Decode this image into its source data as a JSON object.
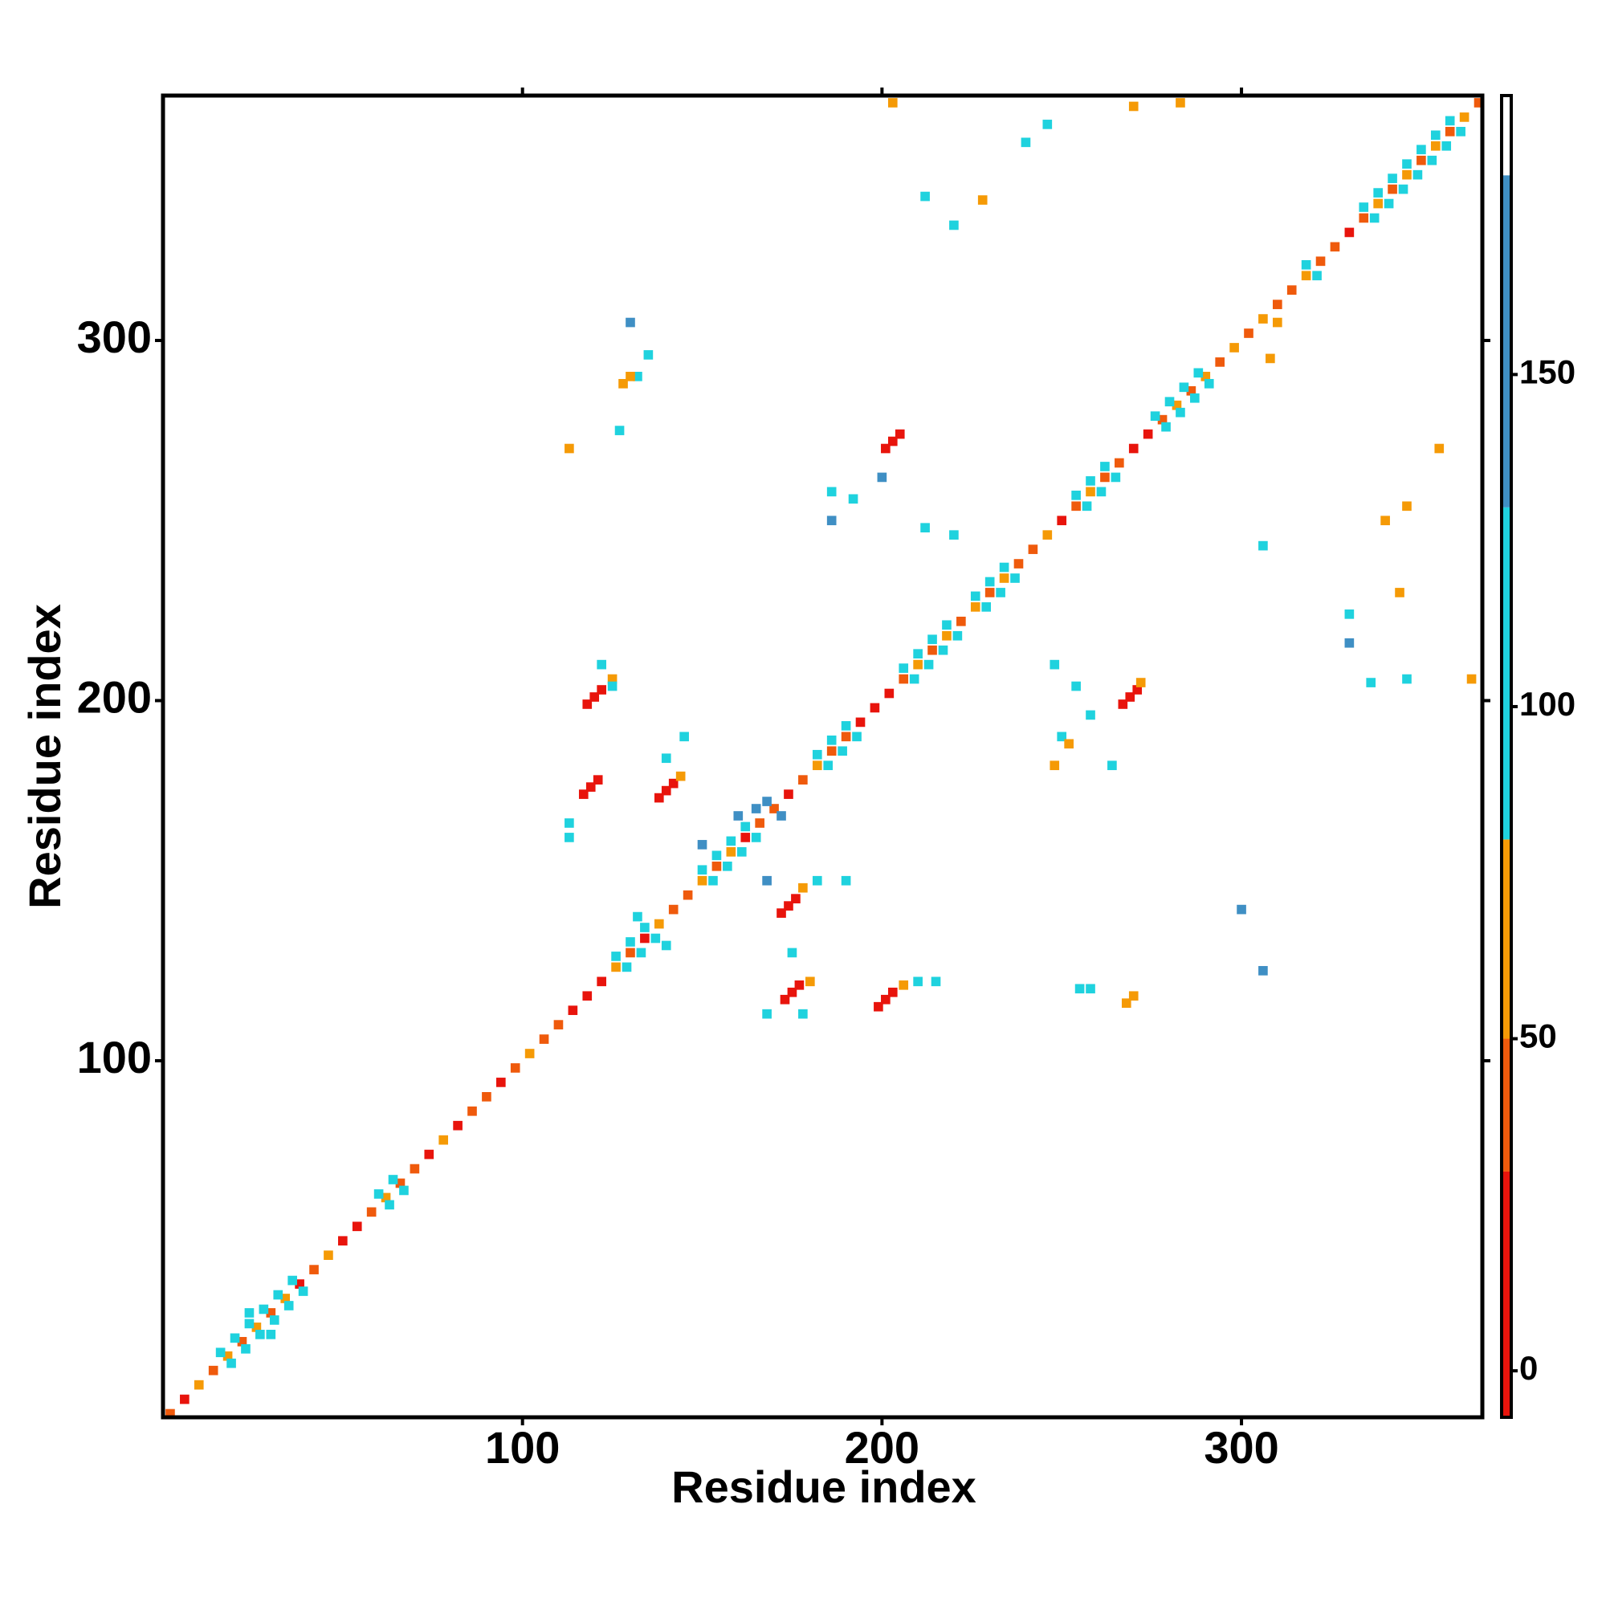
{
  "chart_data": {
    "type": "heatmap",
    "xlabel": "Residue index",
    "ylabel": "Residue index",
    "xlim": [
      0,
      367
    ],
    "ylim": [
      1,
      368
    ],
    "xticks": [
      100,
      200,
      300
    ],
    "yticks": [
      100,
      200,
      300
    ],
    "colorbar": {
      "lim": [
        -7,
        192
      ],
      "ticks": [
        0,
        50,
        100,
        150
      ],
      "bins": [
        -7,
        30,
        50,
        80,
        130,
        180,
        192
      ],
      "colors": [
        "#e8140c",
        "#ef5a0c",
        "#f59a06",
        "#1fd2de",
        "#3f8fc4",
        "#ffffff"
      ]
    },
    "cells": [
      [
        2,
        2,
        40
      ],
      [
        6,
        6,
        20
      ],
      [
        10,
        10,
        60
      ],
      [
        14,
        14,
        45
      ],
      [
        18,
        18,
        60
      ],
      [
        22,
        22,
        30
      ],
      [
        26,
        26,
        60
      ],
      [
        30,
        30,
        45
      ],
      [
        34,
        34,
        60
      ],
      [
        38,
        38,
        20
      ],
      [
        42,
        42,
        45
      ],
      [
        46,
        46,
        60
      ],
      [
        50,
        50,
        20
      ],
      [
        54,
        54,
        10
      ],
      [
        58,
        58,
        45
      ],
      [
        62,
        62,
        60
      ],
      [
        66,
        66,
        30
      ],
      [
        70,
        70,
        45
      ],
      [
        74,
        74,
        20
      ],
      [
        78,
        78,
        60
      ],
      [
        82,
        82,
        20
      ],
      [
        86,
        86,
        45
      ],
      [
        90,
        90,
        30
      ],
      [
        94,
        94,
        20
      ],
      [
        98,
        98,
        45
      ],
      [
        102,
        102,
        60
      ],
      [
        106,
        106,
        45
      ],
      [
        110,
        110,
        30
      ],
      [
        114,
        114,
        20
      ],
      [
        118,
        118,
        10
      ],
      [
        122,
        122,
        20
      ],
      [
        126,
        126,
        60
      ],
      [
        130,
        130,
        45
      ],
      [
        134,
        134,
        20
      ],
      [
        138,
        138,
        60
      ],
      [
        142,
        142,
        45
      ],
      [
        146,
        146,
        30
      ],
      [
        150,
        150,
        60
      ],
      [
        154,
        154,
        45
      ],
      [
        158,
        158,
        60
      ],
      [
        162,
        162,
        20
      ],
      [
        166,
        166,
        45
      ],
      [
        170,
        170,
        30
      ],
      [
        174,
        174,
        20
      ],
      [
        178,
        178,
        45
      ],
      [
        182,
        182,
        60
      ],
      [
        186,
        186,
        45
      ],
      [
        190,
        190,
        30
      ],
      [
        194,
        194,
        20
      ],
      [
        198,
        198,
        10
      ],
      [
        202,
        202,
        20
      ],
      [
        206,
        206,
        45
      ],
      [
        210,
        210,
        60
      ],
      [
        214,
        214,
        45
      ],
      [
        218,
        218,
        60
      ],
      [
        222,
        222,
        45
      ],
      [
        226,
        226,
        60
      ],
      [
        230,
        230,
        45
      ],
      [
        234,
        234,
        60
      ],
      [
        238,
        238,
        30
      ],
      [
        242,
        242,
        45
      ],
      [
        246,
        246,
        60
      ],
      [
        250,
        250,
        20
      ],
      [
        254,
        254,
        45
      ],
      [
        258,
        258,
        60
      ],
      [
        262,
        262,
        45
      ],
      [
        266,
        266,
        30
      ],
      [
        270,
        270,
        20
      ],
      [
        274,
        274,
        10
      ],
      [
        278,
        278,
        45
      ],
      [
        282,
        282,
        60
      ],
      [
        286,
        286,
        45
      ],
      [
        290,
        290,
        60
      ],
      [
        294,
        294,
        45
      ],
      [
        298,
        298,
        60
      ],
      [
        302,
        302,
        45
      ],
      [
        306,
        306,
        60
      ],
      [
        310,
        310,
        30
      ],
      [
        314,
        314,
        45
      ],
      [
        318,
        318,
        60
      ],
      [
        322,
        322,
        45
      ],
      [
        326,
        326,
        30
      ],
      [
        330,
        330,
        20
      ],
      [
        334,
        334,
        45
      ],
      [
        338,
        338,
        60
      ],
      [
        342,
        342,
        30
      ],
      [
        346,
        346,
        60
      ],
      [
        350,
        350,
        45
      ],
      [
        354,
        354,
        60
      ],
      [
        358,
        358,
        45
      ],
      [
        362,
        362,
        60
      ],
      [
        366,
        366,
        30
      ],
      [
        16,
        19,
        100
      ],
      [
        19,
        16,
        110
      ],
      [
        20,
        23,
        100
      ],
      [
        23,
        20,
        110
      ],
      [
        24,
        27,
        100
      ],
      [
        27,
        24,
        110
      ],
      [
        28,
        31,
        100
      ],
      [
        31,
        28,
        110
      ],
      [
        32,
        35,
        100
      ],
      [
        35,
        32,
        110
      ],
      [
        36,
        39,
        100
      ],
      [
        39,
        36,
        110
      ],
      [
        60,
        63,
        100
      ],
      [
        63,
        60,
        110
      ],
      [
        64,
        67,
        100
      ],
      [
        67,
        64,
        110
      ],
      [
        126,
        129,
        100
      ],
      [
        129,
        126,
        110
      ],
      [
        130,
        133,
        100
      ],
      [
        133,
        130,
        110
      ],
      [
        134,
        137,
        100
      ],
      [
        137,
        134,
        110
      ],
      [
        150,
        153,
        100
      ],
      [
        153,
        150,
        110
      ],
      [
        154,
        157,
        100
      ],
      [
        157,
        154,
        110
      ],
      [
        158,
        161,
        100
      ],
      [
        161,
        158,
        110
      ],
      [
        162,
        165,
        100
      ],
      [
        165,
        162,
        110
      ],
      [
        182,
        185,
        100
      ],
      [
        185,
        182,
        110
      ],
      [
        186,
        189,
        100
      ],
      [
        189,
        186,
        110
      ],
      [
        190,
        193,
        100
      ],
      [
        193,
        190,
        110
      ],
      [
        206,
        209,
        100
      ],
      [
        209,
        206,
        110
      ],
      [
        210,
        213,
        100
      ],
      [
        213,
        210,
        110
      ],
      [
        214,
        217,
        100
      ],
      [
        217,
        214,
        110
      ],
      [
        218,
        221,
        100
      ],
      [
        221,
        218,
        110
      ],
      [
        226,
        229,
        100
      ],
      [
        229,
        226,
        110
      ],
      [
        230,
        233,
        100
      ],
      [
        233,
        230,
        110
      ],
      [
        234,
        237,
        100
      ],
      [
        237,
        234,
        110
      ],
      [
        254,
        257,
        100
      ],
      [
        257,
        254,
        110
      ],
      [
        258,
        261,
        100
      ],
      [
        261,
        258,
        110
      ],
      [
        262,
        265,
        100
      ],
      [
        265,
        262,
        110
      ],
      [
        276,
        279,
        100
      ],
      [
        279,
        276,
        110
      ],
      [
        280,
        283,
        100
      ],
      [
        283,
        280,
        110
      ],
      [
        284,
        287,
        100
      ],
      [
        287,
        284,
        110
      ],
      [
        288,
        291,
        100
      ],
      [
        291,
        288,
        110
      ],
      [
        318,
        321,
        100
      ],
      [
        321,
        318,
        110
      ],
      [
        334,
        337,
        100
      ],
      [
        337,
        334,
        110
      ],
      [
        338,
        341,
        100
      ],
      [
        341,
        338,
        110
      ],
      [
        342,
        345,
        100
      ],
      [
        345,
        342,
        110
      ],
      [
        346,
        349,
        100
      ],
      [
        349,
        346,
        110
      ],
      [
        350,
        353,
        100
      ],
      [
        353,
        350,
        110
      ],
      [
        354,
        357,
        100
      ],
      [
        357,
        354,
        110
      ],
      [
        358,
        361,
        100
      ],
      [
        361,
        358,
        110
      ],
      [
        24,
        30,
        100
      ],
      [
        30,
        24,
        100
      ],
      [
        132,
        140,
        100
      ],
      [
        140,
        132,
        100
      ],
      [
        168,
        172,
        150
      ],
      [
        172,
        168,
        150
      ],
      [
        118,
        199,
        5
      ],
      [
        120,
        201,
        5
      ],
      [
        122,
        203,
        5
      ],
      [
        117,
        174,
        5
      ],
      [
        119,
        176,
        5
      ],
      [
        121,
        178,
        5
      ],
      [
        138,
        173,
        5
      ],
      [
        140,
        175,
        5
      ],
      [
        142,
        177,
        5
      ],
      [
        172,
        141,
        5
      ],
      [
        174,
        143,
        5
      ],
      [
        176,
        145,
        5
      ],
      [
        173,
        117,
        5
      ],
      [
        175,
        119,
        5
      ],
      [
        177,
        121,
        5
      ],
      [
        199,
        115,
        5
      ],
      [
        201,
        117,
        5
      ],
      [
        203,
        119,
        5
      ],
      [
        201,
        270,
        5
      ],
      [
        203,
        272,
        5
      ],
      [
        205,
        274,
        5
      ],
      [
        267,
        199,
        5
      ],
      [
        269,
        201,
        5
      ],
      [
        271,
        203,
        5
      ],
      [
        144,
        179,
        60
      ],
      [
        178,
        148,
        60
      ],
      [
        206,
        121,
        60
      ],
      [
        125,
        206,
        60
      ],
      [
        272,
        205,
        60
      ],
      [
        180,
        122,
        60
      ],
      [
        122,
        210,
        100
      ],
      [
        125,
        204,
        100
      ],
      [
        113,
        166,
        100
      ],
      [
        113,
        162,
        100
      ],
      [
        182,
        150,
        100
      ],
      [
        190,
        150,
        100
      ],
      [
        210,
        122,
        100
      ],
      [
        215,
        122,
        100
      ],
      [
        175,
        130,
        100
      ],
      [
        178,
        113,
        100
      ],
      [
        168,
        113,
        100
      ],
      [
        140,
        184,
        100
      ],
      [
        145,
        190,
        100
      ],
      [
        250,
        190,
        100
      ],
      [
        258,
        196,
        100
      ],
      [
        248,
        210,
        100
      ],
      [
        254,
        204,
        100
      ],
      [
        264,
        182,
        100
      ],
      [
        186,
        258,
        100
      ],
      [
        192,
        256,
        100
      ],
      [
        212,
        248,
        100
      ],
      [
        220,
        246,
        100
      ],
      [
        240,
        355,
        100
      ],
      [
        246,
        360,
        100
      ],
      [
        212,
        340,
        100
      ],
      [
        220,
        332,
        100
      ],
      [
        127,
        275,
        100
      ],
      [
        132,
        290,
        100
      ],
      [
        135,
        296,
        100
      ],
      [
        330,
        224,
        100
      ],
      [
        336,
        205,
        100
      ],
      [
        346,
        206,
        100
      ],
      [
        306,
        243,
        100
      ],
      [
        255,
        120,
        100
      ],
      [
        258,
        120,
        100
      ],
      [
        160,
        168,
        160
      ],
      [
        165,
        170,
        160
      ],
      [
        150,
        160,
        160
      ],
      [
        168,
        150,
        160
      ],
      [
        330,
        216,
        160
      ],
      [
        200,
        262,
        160
      ],
      [
        186,
        250,
        160
      ],
      [
        300,
        142,
        160
      ],
      [
        306,
        125,
        160
      ],
      [
        130,
        305,
        160
      ],
      [
        270,
        118,
        60
      ],
      [
        268,
        116,
        60
      ],
      [
        128,
        288,
        60
      ],
      [
        130,
        290,
        60
      ],
      [
        340,
        250,
        60
      ],
      [
        346,
        254,
        60
      ],
      [
        344,
        230,
        60
      ],
      [
        355,
        270,
        60
      ],
      [
        364,
        206,
        60
      ],
      [
        248,
        182,
        60
      ],
      [
        252,
        188,
        60
      ],
      [
        228,
        339,
        60
      ],
      [
        270,
        365,
        60
      ],
      [
        203,
        366,
        60
      ],
      [
        283,
        366,
        60
      ],
      [
        308,
        295,
        60
      ],
      [
        310,
        305,
        60
      ],
      [
        113,
        270,
        60
      ]
    ]
  }
}
